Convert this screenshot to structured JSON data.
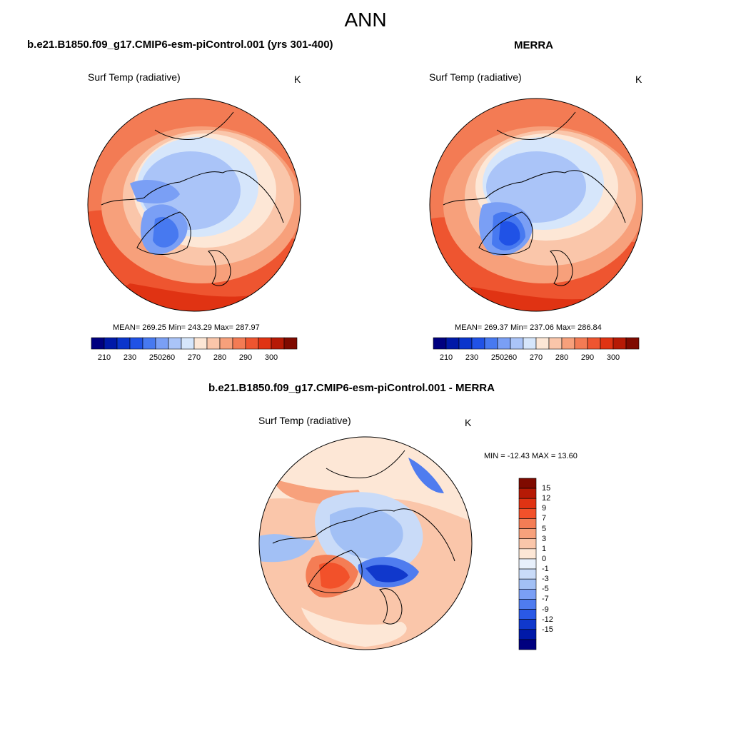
{
  "title": "ANN",
  "panels": [
    {
      "id": "model",
      "heading": "b.e21.B1850.f09_g17.CMIP6-esm-piControl.001 (yrs 301-400)",
      "variable": "Surf Temp (radiative)",
      "units": "K",
      "stats": "MEAN= 269.25  Min= 243.29  Max= 287.97",
      "mean": 269.25,
      "min": 243.29,
      "max": 287.97
    },
    {
      "id": "merra",
      "heading": "MERRA",
      "variable": "Surf Temp (radiative)",
      "units": "K",
      "stats": "MEAN= 269.37  Min= 237.06  Max= 286.84",
      "mean": 269.37,
      "min": 237.06,
      "max": 286.84
    }
  ],
  "diff": {
    "heading": "b.e21.B1850.f09_g17.CMIP6-esm-piControl.001 - MERRA",
    "variable": "Surf Temp (radiative)",
    "units": "K",
    "stats": "MIN = -12.43 MAX =  13.60",
    "min": -12.43,
    "max": 13.6
  },
  "abs_colorbar": {
    "colors": [
      "#00007f",
      "#0019a8",
      "#0a35cc",
      "#2052e6",
      "#4779f0",
      "#7a9ff5",
      "#aac4f8",
      "#d6e6fb",
      "#fde7d6",
      "#fac6aa",
      "#f7a07b",
      "#f37b54",
      "#ee5530",
      "#e03313",
      "#b61a05",
      "#7f0a00"
    ],
    "tick_labels": [
      "210",
      "230",
      "250",
      "260",
      "270",
      "280",
      "290",
      "300"
    ]
  },
  "diff_colorbar": {
    "colors": [
      "#7f0a00",
      "#b61a05",
      "#e03313",
      "#f2512a",
      "#f47d55",
      "#f7a17c",
      "#fac6aa",
      "#fde7d6",
      "#e8f0fb",
      "#c9dbf8",
      "#a2c0f5",
      "#7a9ff5",
      "#4f7cef",
      "#2a59e6",
      "#1038cc",
      "#0019a8",
      "#00007f"
    ],
    "tick_labels": [
      "15",
      "12",
      "9",
      "7",
      "5",
      "3",
      "1",
      "0",
      "-1",
      "-3",
      "-5",
      "-7",
      "-9",
      "-12",
      "-15"
    ]
  }
}
